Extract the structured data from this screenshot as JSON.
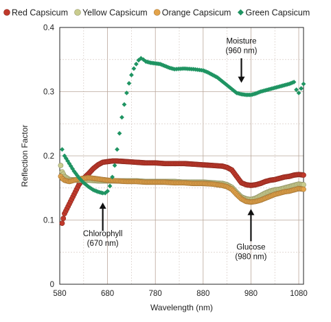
{
  "chart_data": {
    "type": "scatter",
    "xlabel": "Wavelength (nm)",
    "ylabel": "Reflection Factor",
    "xlim": [
      580,
      1090
    ],
    "ylim": [
      0,
      0.4
    ],
    "xticks": [
      580,
      680,
      780,
      880,
      980,
      1080
    ],
    "yticks": [
      0,
      0.1,
      0.2,
      0.3,
      0.4
    ],
    "xtick_labels": [
      "580",
      "680",
      "780",
      "880",
      "980",
      "1080"
    ],
    "ytick_labels": [
      "0",
      "0.1",
      "0.2",
      "0.3",
      "0.4"
    ],
    "grid": true,
    "legend_position": "top",
    "series": [
      {
        "name": "Red Capsicum",
        "color": "#c0392b",
        "marker": "circle",
        "points": [
          [
            585,
            0.095
          ],
          [
            590,
            0.11
          ],
          [
            600,
            0.125
          ],
          [
            610,
            0.14
          ],
          [
            620,
            0.155
          ],
          [
            630,
            0.165
          ],
          [
            640,
            0.172
          ],
          [
            650,
            0.18
          ],
          [
            660,
            0.186
          ],
          [
            670,
            0.19
          ],
          [
            680,
            0.191
          ],
          [
            690,
            0.192
          ],
          [
            700,
            0.192
          ],
          [
            720,
            0.191
          ],
          [
            740,
            0.19
          ],
          [
            760,
            0.189
          ],
          [
            780,
            0.189
          ],
          [
            800,
            0.188
          ],
          [
            820,
            0.188
          ],
          [
            840,
            0.188
          ],
          [
            860,
            0.187
          ],
          [
            880,
            0.186
          ],
          [
            900,
            0.185
          ],
          [
            920,
            0.184
          ],
          [
            930,
            0.182
          ],
          [
            940,
            0.178
          ],
          [
            950,
            0.168
          ],
          [
            960,
            0.158
          ],
          [
            970,
            0.155
          ],
          [
            980,
            0.154
          ],
          [
            990,
            0.155
          ],
          [
            1000,
            0.157
          ],
          [
            1010,
            0.16
          ],
          [
            1020,
            0.162
          ],
          [
            1030,
            0.163
          ],
          [
            1040,
            0.165
          ],
          [
            1050,
            0.167
          ],
          [
            1060,
            0.168
          ],
          [
            1070,
            0.17
          ],
          [
            1080,
            0.171
          ],
          [
            1090,
            0.17
          ]
        ]
      },
      {
        "name": "Yellow Capsicum",
        "color": "#c9cc8e",
        "marker": "circle",
        "points": [
          [
            582,
            0.185
          ],
          [
            585,
            0.175
          ],
          [
            590,
            0.168
          ],
          [
            600,
            0.163
          ],
          [
            620,
            0.162
          ],
          [
            640,
            0.162
          ],
          [
            660,
            0.161
          ],
          [
            680,
            0.161
          ],
          [
            700,
            0.161
          ],
          [
            720,
            0.161
          ],
          [
            740,
            0.161
          ],
          [
            760,
            0.16
          ],
          [
            780,
            0.16
          ],
          [
            800,
            0.16
          ],
          [
            820,
            0.16
          ],
          [
            840,
            0.159
          ],
          [
            860,
            0.159
          ],
          [
            880,
            0.159
          ],
          [
            900,
            0.158
          ],
          [
            920,
            0.157
          ],
          [
            930,
            0.155
          ],
          [
            940,
            0.151
          ],
          [
            950,
            0.143
          ],
          [
            960,
            0.136
          ],
          [
            970,
            0.133
          ],
          [
            980,
            0.132
          ],
          [
            990,
            0.134
          ],
          [
            1000,
            0.138
          ],
          [
            1010,
            0.142
          ],
          [
            1020,
            0.145
          ],
          [
            1030,
            0.147
          ],
          [
            1040,
            0.148
          ],
          [
            1050,
            0.15
          ],
          [
            1060,
            0.152
          ],
          [
            1070,
            0.154
          ],
          [
            1080,
            0.156
          ],
          [
            1090,
            0.155
          ]
        ]
      },
      {
        "name": "Orange Capsicum",
        "color": "#e3a34a",
        "marker": "circle",
        "points": [
          [
            582,
            0.168
          ],
          [
            585,
            0.165
          ],
          [
            590,
            0.162
          ],
          [
            600,
            0.16
          ],
          [
            620,
            0.164
          ],
          [
            640,
            0.166
          ],
          [
            660,
            0.164
          ],
          [
            680,
            0.162
          ],
          [
            700,
            0.161
          ],
          [
            720,
            0.16
          ],
          [
            740,
            0.16
          ],
          [
            760,
            0.159
          ],
          [
            780,
            0.159
          ],
          [
            800,
            0.159
          ],
          [
            820,
            0.158
          ],
          [
            840,
            0.158
          ],
          [
            860,
            0.157
          ],
          [
            880,
            0.157
          ],
          [
            900,
            0.156
          ],
          [
            920,
            0.154
          ],
          [
            930,
            0.152
          ],
          [
            940,
            0.148
          ],
          [
            950,
            0.14
          ],
          [
            960,
            0.133
          ],
          [
            970,
            0.129
          ],
          [
            980,
            0.128
          ],
          [
            990,
            0.129
          ],
          [
            1000,
            0.131
          ],
          [
            1010,
            0.134
          ],
          [
            1020,
            0.137
          ],
          [
            1030,
            0.14
          ],
          [
            1040,
            0.142
          ],
          [
            1050,
            0.144
          ],
          [
            1060,
            0.145
          ],
          [
            1070,
            0.147
          ],
          [
            1080,
            0.149
          ],
          [
            1090,
            0.148
          ]
        ]
      },
      {
        "name": "Green Capsicum",
        "color": "#1f9462",
        "marker": "diamond",
        "points": [
          [
            585,
            0.21
          ],
          [
            590,
            0.2
          ],
          [
            600,
            0.188
          ],
          [
            610,
            0.176
          ],
          [
            620,
            0.166
          ],
          [
            630,
            0.158
          ],
          [
            640,
            0.152
          ],
          [
            650,
            0.147
          ],
          [
            660,
            0.144
          ],
          [
            670,
            0.142
          ],
          [
            675,
            0.142
          ],
          [
            680,
            0.145
          ],
          [
            685,
            0.153
          ],
          [
            690,
            0.167
          ],
          [
            695,
            0.185
          ],
          [
            700,
            0.21
          ],
          [
            705,
            0.235
          ],
          [
            710,
            0.26
          ],
          [
            715,
            0.28
          ],
          [
            720,
            0.298
          ],
          [
            725,
            0.313
          ],
          [
            730,
            0.326
          ],
          [
            735,
            0.336
          ],
          [
            740,
            0.343
          ],
          [
            745,
            0.349
          ],
          [
            750,
            0.352
          ],
          [
            755,
            0.35
          ],
          [
            760,
            0.347
          ],
          [
            770,
            0.345
          ],
          [
            780,
            0.344
          ],
          [
            790,
            0.343
          ],
          [
            800,
            0.34
          ],
          [
            810,
            0.337
          ],
          [
            820,
            0.335
          ],
          [
            840,
            0.336
          ],
          [
            860,
            0.335
          ],
          [
            880,
            0.333
          ],
          [
            890,
            0.33
          ],
          [
            900,
            0.326
          ],
          [
            910,
            0.322
          ],
          [
            920,
            0.316
          ],
          [
            930,
            0.31
          ],
          [
            940,
            0.304
          ],
          [
            950,
            0.298
          ],
          [
            960,
            0.296
          ],
          [
            970,
            0.295
          ],
          [
            980,
            0.295
          ],
          [
            990,
            0.297
          ],
          [
            1000,
            0.3
          ],
          [
            1010,
            0.302
          ],
          [
            1020,
            0.304
          ],
          [
            1030,
            0.306
          ],
          [
            1040,
            0.308
          ],
          [
            1050,
            0.31
          ],
          [
            1060,
            0.312
          ],
          [
            1070,
            0.315
          ],
          [
            1075,
            0.303
          ],
          [
            1080,
            0.298
          ],
          [
            1085,
            0.305
          ],
          [
            1090,
            0.312
          ]
        ]
      }
    ],
    "annotations": [
      {
        "lines": [
          "Moisture",
          "(960 nm)"
        ],
        "x": 960,
        "arrow": "down"
      },
      {
        "lines": [
          "Chlorophyll",
          "(670 nm)"
        ],
        "x": 670,
        "arrow": "up"
      },
      {
        "lines": [
          "Glucose",
          "(980 nm)"
        ],
        "x": 980,
        "arrow": "up"
      }
    ]
  }
}
